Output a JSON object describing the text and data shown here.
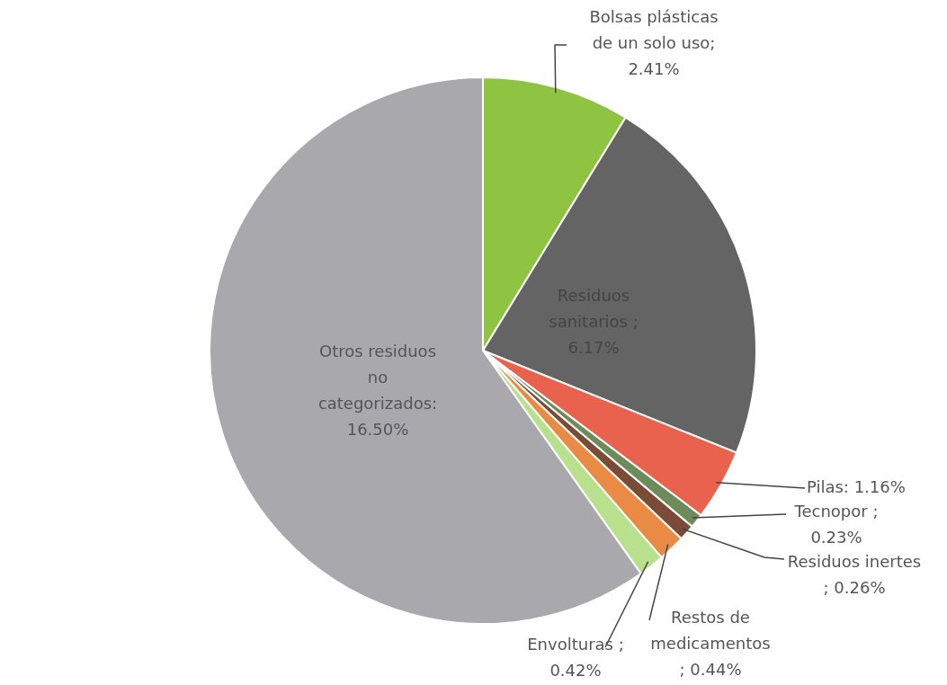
{
  "chart_data": {
    "type": "pie",
    "categories": [
      "Bolsas plásticas de un solo uso",
      "Residuos sanitarios",
      "Pilas",
      "Tecnopor",
      "Residuos inertes",
      "Restos de medicamentos",
      "Envolturas",
      "Otros residuos no categorizados"
    ],
    "values": [
      2.41,
      6.17,
      1.16,
      0.23,
      0.26,
      0.44,
      0.42,
      16.5
    ],
    "value_labels": [
      "; 2.41%",
      "; 6.17%",
      ": 1.16%",
      "; 0.23%",
      "; 0.26%",
      "; 0.44%",
      "; 0.42%",
      ": 16.50%"
    ],
    "colors": [
      "#8fc443",
      "#646464",
      "#e8624d",
      "#6e8c5b",
      "#7a4b36",
      "#e98a45",
      "#b9e08d",
      "#a9a9ad"
    ],
    "legend": false
  }
}
